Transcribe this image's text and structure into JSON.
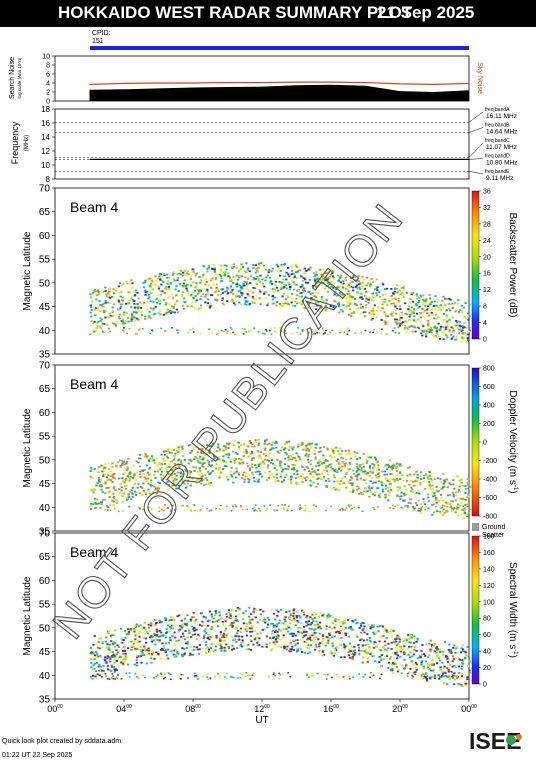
{
  "header": {
    "title": "HOKKAIDO WEST RADAR SUMMARY PLOT",
    "date": "21 Sep 2025"
  },
  "cpid": {
    "label": "CPID:",
    "value": "151"
  },
  "watermark": "NOT FOR PUBLICATION",
  "noise_panel": {
    "ylabel": "Search Noise",
    "ylabel2": "log scale (Ana 10^n)",
    "yticks": [
      "0",
      "2",
      "4",
      "6",
      "8",
      "10"
    ],
    "right_label": "Sky Noise",
    "colors": {
      "search": "#000000",
      "sky": "#e04010"
    }
  },
  "freq_panel": {
    "ylabel": "Frequency",
    "ylabel_unit": "(MHz)",
    "yticks": [
      "8",
      "10",
      "12",
      "14",
      "16",
      "18"
    ],
    "bands": [
      {
        "name": "freq bandA",
        "value": "16.11 MHz",
        "freq": 16.11
      },
      {
        "name": "freq bandB",
        "value": "14.64 MHz",
        "freq": 14.64
      },
      {
        "name": "freq bandC",
        "value": "11.07 MHz",
        "freq": 11.07
      },
      {
        "name": "freq bandD",
        "value": "10.80 MHz",
        "freq": 10.8
      },
      {
        "name": "freq bandE",
        "value": "9.11 MHz",
        "freq": 9.11
      }
    ]
  },
  "panels": [
    {
      "id": "power",
      "beam_label": "Beam  4",
      "ylabel": "Magnetic Latitude",
      "yticks": [
        "35",
        "40",
        "45",
        "50",
        "55",
        "60",
        "65",
        "70"
      ],
      "colorbar_label": "Backscatter Power (dB)",
      "colorbar_ticks": [
        "0",
        "4",
        "8",
        "12",
        "16",
        "20",
        "24",
        "28",
        "32",
        "36"
      ]
    },
    {
      "id": "velocity",
      "beam_label": "Beam  4",
      "ylabel": "Magnetic Latitude",
      "yticks": [
        "35",
        "40",
        "45",
        "50",
        "55",
        "60",
        "65",
        "70"
      ],
      "colorbar_label": "Doppler Velocity (m s",
      "colorbar_unit_sup": "-1",
      "colorbar_close": ")",
      "colorbar_ticks": [
        "-800",
        "-600",
        "-400",
        "-200",
        "0",
        "200",
        "400",
        "600",
        "800"
      ],
      "ground_label_1": "Ground",
      "ground_label_2": "Scatter"
    },
    {
      "id": "width",
      "beam_label": "Beam  4",
      "ylabel": "Magnetic Latitude",
      "yticks": [
        "35",
        "40",
        "45",
        "50",
        "55",
        "60",
        "65",
        "70"
      ],
      "colorbar_label": "Spectral Width (m s",
      "colorbar_unit_sup": "-1",
      "colorbar_close": ")",
      "colorbar_ticks": [
        "0",
        "20",
        "40",
        "60",
        "80",
        "100",
        "120",
        "140",
        "160",
        "180"
      ]
    }
  ],
  "xaxis": {
    "label": "UT",
    "ticks": [
      {
        "h": "00",
        "m": "00"
      },
      {
        "h": "04",
        "m": "00"
      },
      {
        "h": "08",
        "m": "00"
      },
      {
        "h": "12",
        "m": "00"
      },
      {
        "h": "16",
        "m": "00"
      },
      {
        "h": "20",
        "m": "00"
      },
      {
        "h": "00",
        "m": "00"
      }
    ]
  },
  "footer": {
    "line1": "Quick look plot created by sddata.adm",
    "line2": "01:22 UT 22 Sep 2025"
  },
  "logo": {
    "text": "ISEE",
    "colors": [
      "#1a1a1a",
      "#2aa44a",
      "#e07b1c"
    ]
  },
  "chart_data": [
    {
      "type": "area",
      "title": "Search Noise",
      "x_range_hours": [
        0,
        24
      ],
      "ylim": [
        0,
        10
      ],
      "series": [
        {
          "name": "Search Noise",
          "x": [
            2,
            4,
            6,
            8,
            10,
            12,
            14,
            16,
            18,
            20,
            22,
            24
          ],
          "values": [
            2.5,
            2.6,
            2.8,
            3.0,
            3.1,
            3.2,
            3.5,
            3.6,
            3.4,
            2.2,
            2.0,
            2.4
          ]
        },
        {
          "name": "Sky Noise",
          "x": [
            2,
            4,
            6,
            8,
            10,
            12,
            14,
            16,
            18,
            20,
            22,
            24
          ],
          "values": [
            3.7,
            3.9,
            4.0,
            4.0,
            4.1,
            4.1,
            4.2,
            4.2,
            4.1,
            3.8,
            3.7,
            3.9
          ]
        }
      ]
    },
    {
      "type": "line",
      "title": "Frequency",
      "ylim": [
        8,
        18
      ],
      "x_range_hours": [
        2,
        24
      ],
      "values": [
        10.8,
        10.8,
        10.8,
        10.8
      ]
    },
    {
      "type": "heatmap",
      "title": "Backscatter Power",
      "ylim": [
        35,
        70
      ],
      "x_range_hours": [
        2,
        24
      ]
    },
    {
      "type": "heatmap",
      "title": "Doppler Velocity",
      "ylim": [
        35,
        70
      ],
      "x_range_hours": [
        2,
        24
      ]
    },
    {
      "type": "heatmap",
      "title": "Spectral Width",
      "ylim": [
        35,
        70
      ],
      "x_range_hours": [
        2,
        24
      ]
    }
  ]
}
